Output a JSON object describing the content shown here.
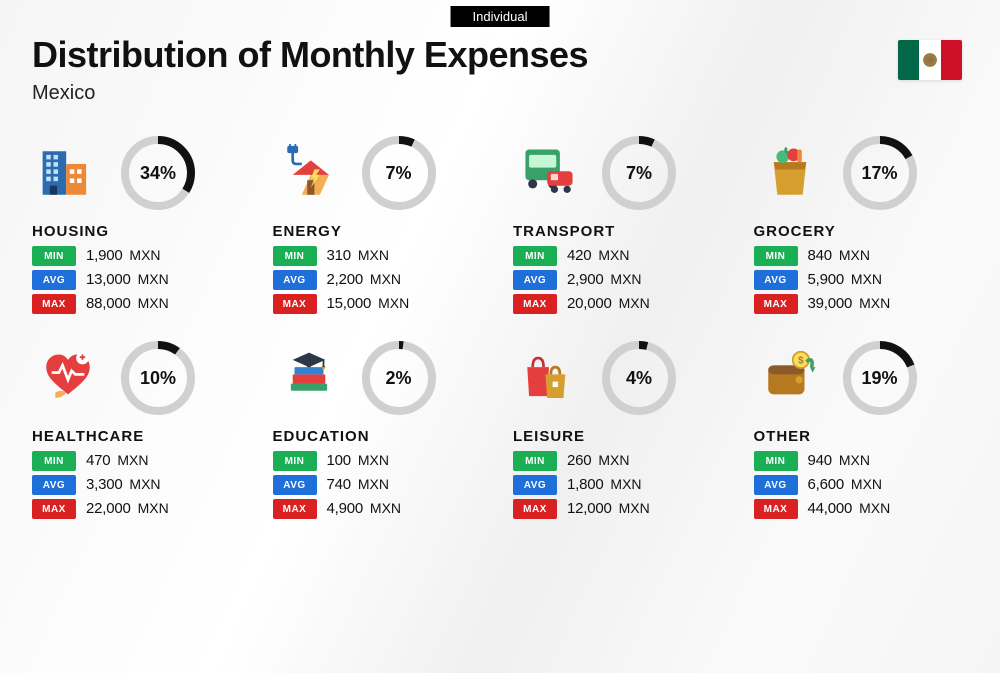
{
  "badge": "Individual",
  "title": "Distribution of Monthly Expenses",
  "subtitle": "Mexico",
  "currency": "MXN",
  "colors": {
    "min_badge": "#1aaf54",
    "avg_badge": "#1e6fd9",
    "max_badge": "#d92121",
    "donut_fg": "#111111",
    "donut_bg": "#d0d0d0",
    "text": "#111111",
    "top_badge_bg": "#000000",
    "top_badge_fg": "#ffffff",
    "flag_green": "#006847",
    "flag_white": "#ffffff",
    "flag_red": "#ce1126"
  },
  "labels": {
    "min": "MIN",
    "avg": "AVG",
    "max": "MAX"
  },
  "donut": {
    "radius": 33,
    "stroke_width": 8
  },
  "categories": [
    {
      "key": "housing",
      "name": "HOUSING",
      "percent": 34,
      "min": "1,900",
      "avg": "13,000",
      "max": "88,000"
    },
    {
      "key": "energy",
      "name": "ENERGY",
      "percent": 7,
      "min": "310",
      "avg": "2,200",
      "max": "15,000"
    },
    {
      "key": "transport",
      "name": "TRANSPORT",
      "percent": 7,
      "min": "420",
      "avg": "2,900",
      "max": "20,000"
    },
    {
      "key": "grocery",
      "name": "GROCERY",
      "percent": 17,
      "min": "840",
      "avg": "5,900",
      "max": "39,000"
    },
    {
      "key": "healthcare",
      "name": "HEALTHCARE",
      "percent": 10,
      "min": "470",
      "avg": "3,300",
      "max": "22,000"
    },
    {
      "key": "education",
      "name": "EDUCATION",
      "percent": 2,
      "min": "100",
      "avg": "740",
      "max": "4,900"
    },
    {
      "key": "leisure",
      "name": "LEISURE",
      "percent": 4,
      "min": "260",
      "avg": "1,800",
      "max": "12,000"
    },
    {
      "key": "other",
      "name": "OTHER",
      "percent": 19,
      "min": "940",
      "avg": "6,600",
      "max": "44,000"
    }
  ]
}
